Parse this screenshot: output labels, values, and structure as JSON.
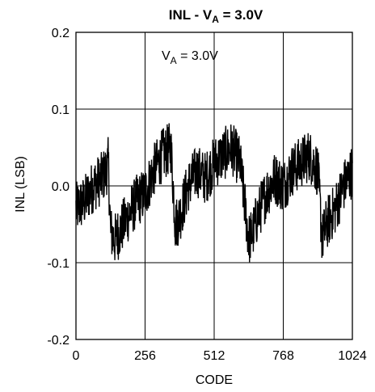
{
  "chart_data": {
    "type": "line",
    "title": {
      "prefix": "INL - V",
      "sub": "A",
      "suffix": " = 3.0V"
    },
    "annotation": {
      "prefix": "V",
      "sub": "A",
      "suffix": " = 3.0V"
    },
    "xlabel": "CODE",
    "ylabel": "INL (LSB)",
    "xlim": [
      0,
      1024
    ],
    "ylim": [
      -0.2,
      0.2
    ],
    "x_ticks": [
      {
        "value": 0,
        "label": "0"
      },
      {
        "value": 256,
        "label": "256"
      },
      {
        "value": 512,
        "label": "512"
      },
      {
        "value": 768,
        "label": "768"
      },
      {
        "value": 1024,
        "label": "1024"
      }
    ],
    "y_ticks": [
      {
        "value": 0.2,
        "label": "0.2"
      },
      {
        "value": 0.1,
        "label": "0.1"
      },
      {
        "value": 0.0,
        "label": "0.0"
      },
      {
        "value": -0.1,
        "label": "-0.1"
      },
      {
        "value": -0.2,
        "label": "-0.2"
      }
    ],
    "grid": true,
    "line_color": "#000000",
    "series": [
      {
        "x": [
          0,
          32,
          64,
          96,
          112,
          120,
          128,
          144,
          160,
          192,
          224,
          256,
          288,
          320,
          352,
          368,
          384,
          416,
          448,
          480,
          512,
          544,
          576,
          608,
          640,
          656,
          672,
          704,
          736,
          768,
          800,
          832,
          864,
          896,
          912,
          928,
          960,
          992,
          1024
        ],
        "y": [
          -0.03,
          -0.02,
          0.0,
          0.01,
          0.02,
          0.03,
          -0.06,
          -0.07,
          -0.06,
          -0.04,
          -0.02,
          -0.01,
          0.02,
          0.04,
          0.05,
          -0.05,
          -0.04,
          0.0,
          0.02,
          0.01,
          0.03,
          0.04,
          0.05,
          0.03,
          -0.07,
          -0.06,
          -0.04,
          -0.01,
          0.01,
          0.0,
          0.02,
          0.03,
          0.04,
          0.02,
          -0.07,
          -0.05,
          -0.03,
          0.0,
          0.02
        ],
        "noise_amplitude": 0.035
      }
    ]
  }
}
